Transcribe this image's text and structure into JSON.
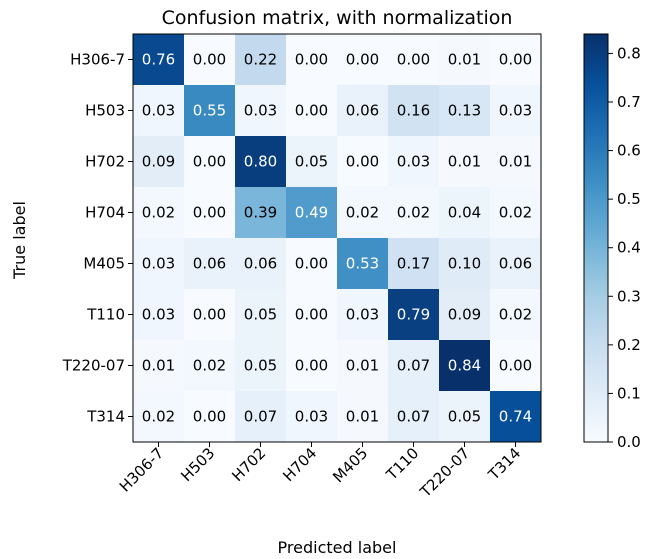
{
  "chart_data": {
    "type": "heatmap",
    "title": "Confusion matrix, with normalization",
    "xlabel": "Predicted label",
    "ylabel": "True label",
    "x_categories": [
      "H306-7",
      "H503",
      "H702",
      "H704",
      "M405",
      "T110",
      "T220-07",
      "T314"
    ],
    "y_categories": [
      "H306-7",
      "H503",
      "H702",
      "H704",
      "M405",
      "T110",
      "T220-07",
      "T314"
    ],
    "values": [
      [
        0.76,
        0.0,
        0.22,
        0.0,
        0.0,
        0.0,
        0.01,
        0.0
      ],
      [
        0.03,
        0.55,
        0.03,
        0.0,
        0.06,
        0.16,
        0.13,
        0.03
      ],
      [
        0.09,
        0.0,
        0.8,
        0.05,
        0.0,
        0.03,
        0.01,
        0.01
      ],
      [
        0.02,
        0.0,
        0.39,
        0.49,
        0.02,
        0.02,
        0.04,
        0.02
      ],
      [
        0.03,
        0.06,
        0.06,
        0.0,
        0.53,
        0.17,
        0.1,
        0.06
      ],
      [
        0.03,
        0.0,
        0.05,
        0.0,
        0.03,
        0.79,
        0.09,
        0.02
      ],
      [
        0.01,
        0.02,
        0.05,
        0.0,
        0.01,
        0.07,
        0.84,
        0.0
      ],
      [
        0.02,
        0.0,
        0.07,
        0.03,
        0.01,
        0.07,
        0.05,
        0.74
      ]
    ],
    "colormap": "Blues",
    "colorbar": {
      "range": [
        0.0,
        0.84
      ],
      "ticks": [
        0.0,
        0.1,
        0.2,
        0.3,
        0.4,
        0.5,
        0.6,
        0.7,
        0.8
      ],
      "tick_labels": [
        "0.0",
        "0.1",
        "0.2",
        "0.3",
        "0.4",
        "0.5",
        "0.6",
        "0.7",
        "0.8"
      ]
    }
  }
}
